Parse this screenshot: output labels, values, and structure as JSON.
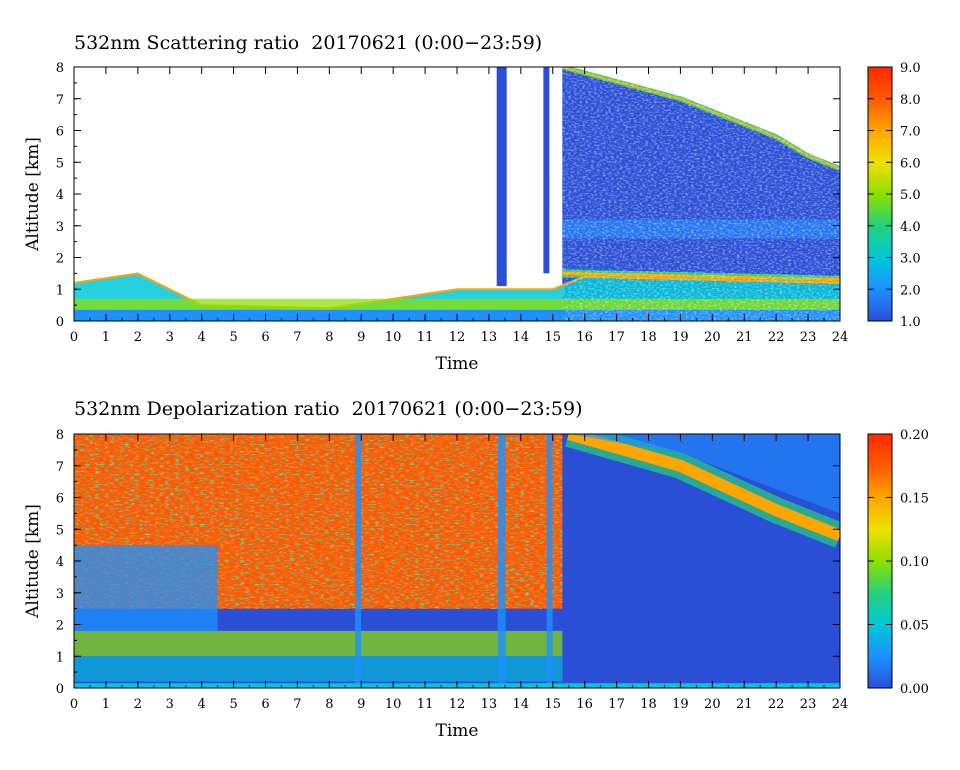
{
  "colors": {
    "background": "#ffffff",
    "colormap": [
      "#2a4fd6",
      "#1e90ff",
      "#00c8d8",
      "#26d07c",
      "#8fe000",
      "#f0e000",
      "#ffa500",
      "#ff5a00",
      "#ff2a00"
    ]
  },
  "chart_data": [
    {
      "type": "heatmap",
      "title": "532nm Scattering ratio  20170621 (0:00−23:59)",
      "xlabel": "Time",
      "ylabel": "Altitude [km]",
      "xlim": [
        0,
        24
      ],
      "ylim": [
        0,
        8
      ],
      "x_ticks": [
        "0",
        "1",
        "2",
        "3",
        "4",
        "5",
        "6",
        "7",
        "8",
        "9",
        "10",
        "11",
        "12",
        "13",
        "14",
        "15",
        "16",
        "17",
        "18",
        "19",
        "20",
        "21",
        "22",
        "23",
        "24"
      ],
      "y_ticks": [
        "0",
        "1",
        "2",
        "3",
        "4",
        "5",
        "6",
        "7",
        "8"
      ],
      "colorbar": {
        "range": [
          1.0,
          9.0
        ],
        "labels": [
          "1.0",
          "2.0",
          "3.0",
          "4.0",
          "5.0",
          "6.0",
          "7.0",
          "8.0",
          "9.0"
        ]
      },
      "features": {
        "boundary_layer_top_km": [
          [
            0,
            1.2
          ],
          [
            2,
            1.5
          ],
          [
            4,
            0.5
          ],
          [
            8,
            0.4
          ],
          [
            12,
            1.0
          ],
          [
            15,
            1.0
          ],
          [
            16,
            1.4
          ],
          [
            20,
            1.3
          ],
          [
            24,
            1.2
          ]
        ],
        "cirrus_top_km": [
          [
            15.3,
            8.0
          ],
          [
            19,
            7.0
          ],
          [
            22,
            5.8
          ],
          [
            23,
            5.2
          ],
          [
            24,
            4.8
          ]
        ],
        "aerosol_layer_km": [
          [
            15.3,
            1.5
          ],
          [
            24,
            1.3
          ]
        ]
      }
    },
    {
      "type": "heatmap",
      "title": "532nm Depolarization ratio  20170621 (0:00−23:59)",
      "xlabel": "Time",
      "ylabel": "Altitude [km]",
      "xlim": [
        0,
        24
      ],
      "ylim": [
        0,
        8
      ],
      "x_ticks": [
        "0",
        "1",
        "2",
        "3",
        "4",
        "5",
        "6",
        "7",
        "8",
        "9",
        "10",
        "11",
        "12",
        "13",
        "14",
        "15",
        "16",
        "17",
        "18",
        "19",
        "20",
        "21",
        "22",
        "23",
        "24"
      ],
      "y_ticks": [
        "0",
        "1",
        "2",
        "3",
        "4",
        "5",
        "6",
        "7",
        "8"
      ],
      "colorbar": {
        "range": [
          0.0,
          0.2
        ],
        "labels": [
          "0.00",
          "0.05",
          "0.10",
          "0.15",
          "0.20"
        ]
      },
      "features": {
        "high_depol_region": "0-15.3 h above ~2.5 km",
        "cirrus_band_km": [
          [
            15.5,
            8.0
          ],
          [
            19,
            7.0
          ],
          [
            22,
            5.6
          ],
          [
            24,
            4.8
          ]
        ]
      }
    }
  ]
}
